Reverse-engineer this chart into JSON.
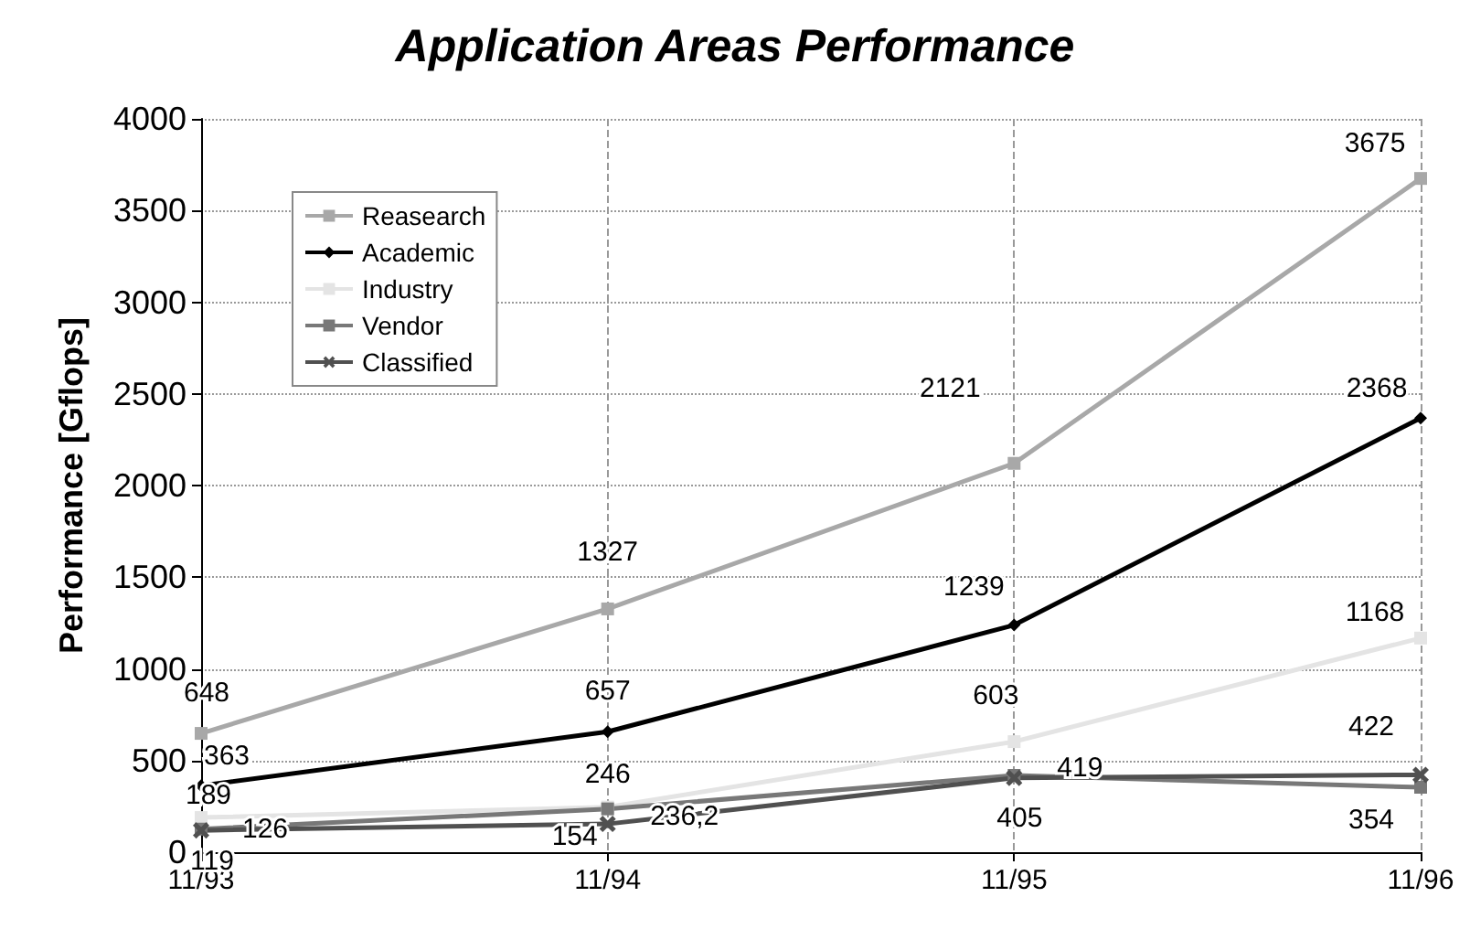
{
  "chart_data": {
    "type": "line",
    "title": "Application Areas Performance",
    "ylabel": "Performance [Gflops]",
    "categories": [
      "11/93",
      "11/94",
      "11/95",
      "11/96"
    ],
    "series": [
      {
        "name": "Reasearch",
        "color": "#a8a8a8",
        "marker": "square",
        "values": [
          648,
          1327,
          2121,
          3675
        ],
        "value_labels": [
          "648",
          "1327",
          "2121",
          "3675"
        ]
      },
      {
        "name": "Academic",
        "color": "#000000",
        "marker": "diamond",
        "values": [
          363,
          657,
          1239,
          2368
        ],
        "value_labels": [
          "363",
          "657",
          "1239",
          "2368"
        ]
      },
      {
        "name": "Industry",
        "color": "#e4e4e4",
        "marker": "square",
        "values": [
          189,
          246,
          603,
          1168
        ],
        "value_labels": [
          "189",
          "246",
          "603",
          "1168"
        ]
      },
      {
        "name": "Vendor",
        "color": "#787878",
        "marker": "square",
        "values": [
          126,
          236.2,
          419,
          354
        ],
        "value_labels": [
          "126",
          "236,2",
          "419",
          "354"
        ]
      },
      {
        "name": "Classified",
        "color": "#505050",
        "marker": "cross",
        "values": [
          119,
          154,
          405,
          422
        ],
        "value_labels": [
          "119",
          "154",
          "405",
          "422"
        ]
      }
    ],
    "ylim": [
      0,
      4000
    ],
    "yticks": [
      0,
      500,
      1000,
      1500,
      2000,
      2500,
      3000,
      3500,
      4000
    ],
    "grid": true,
    "legend": "top left",
    "line_style": "solid"
  }
}
